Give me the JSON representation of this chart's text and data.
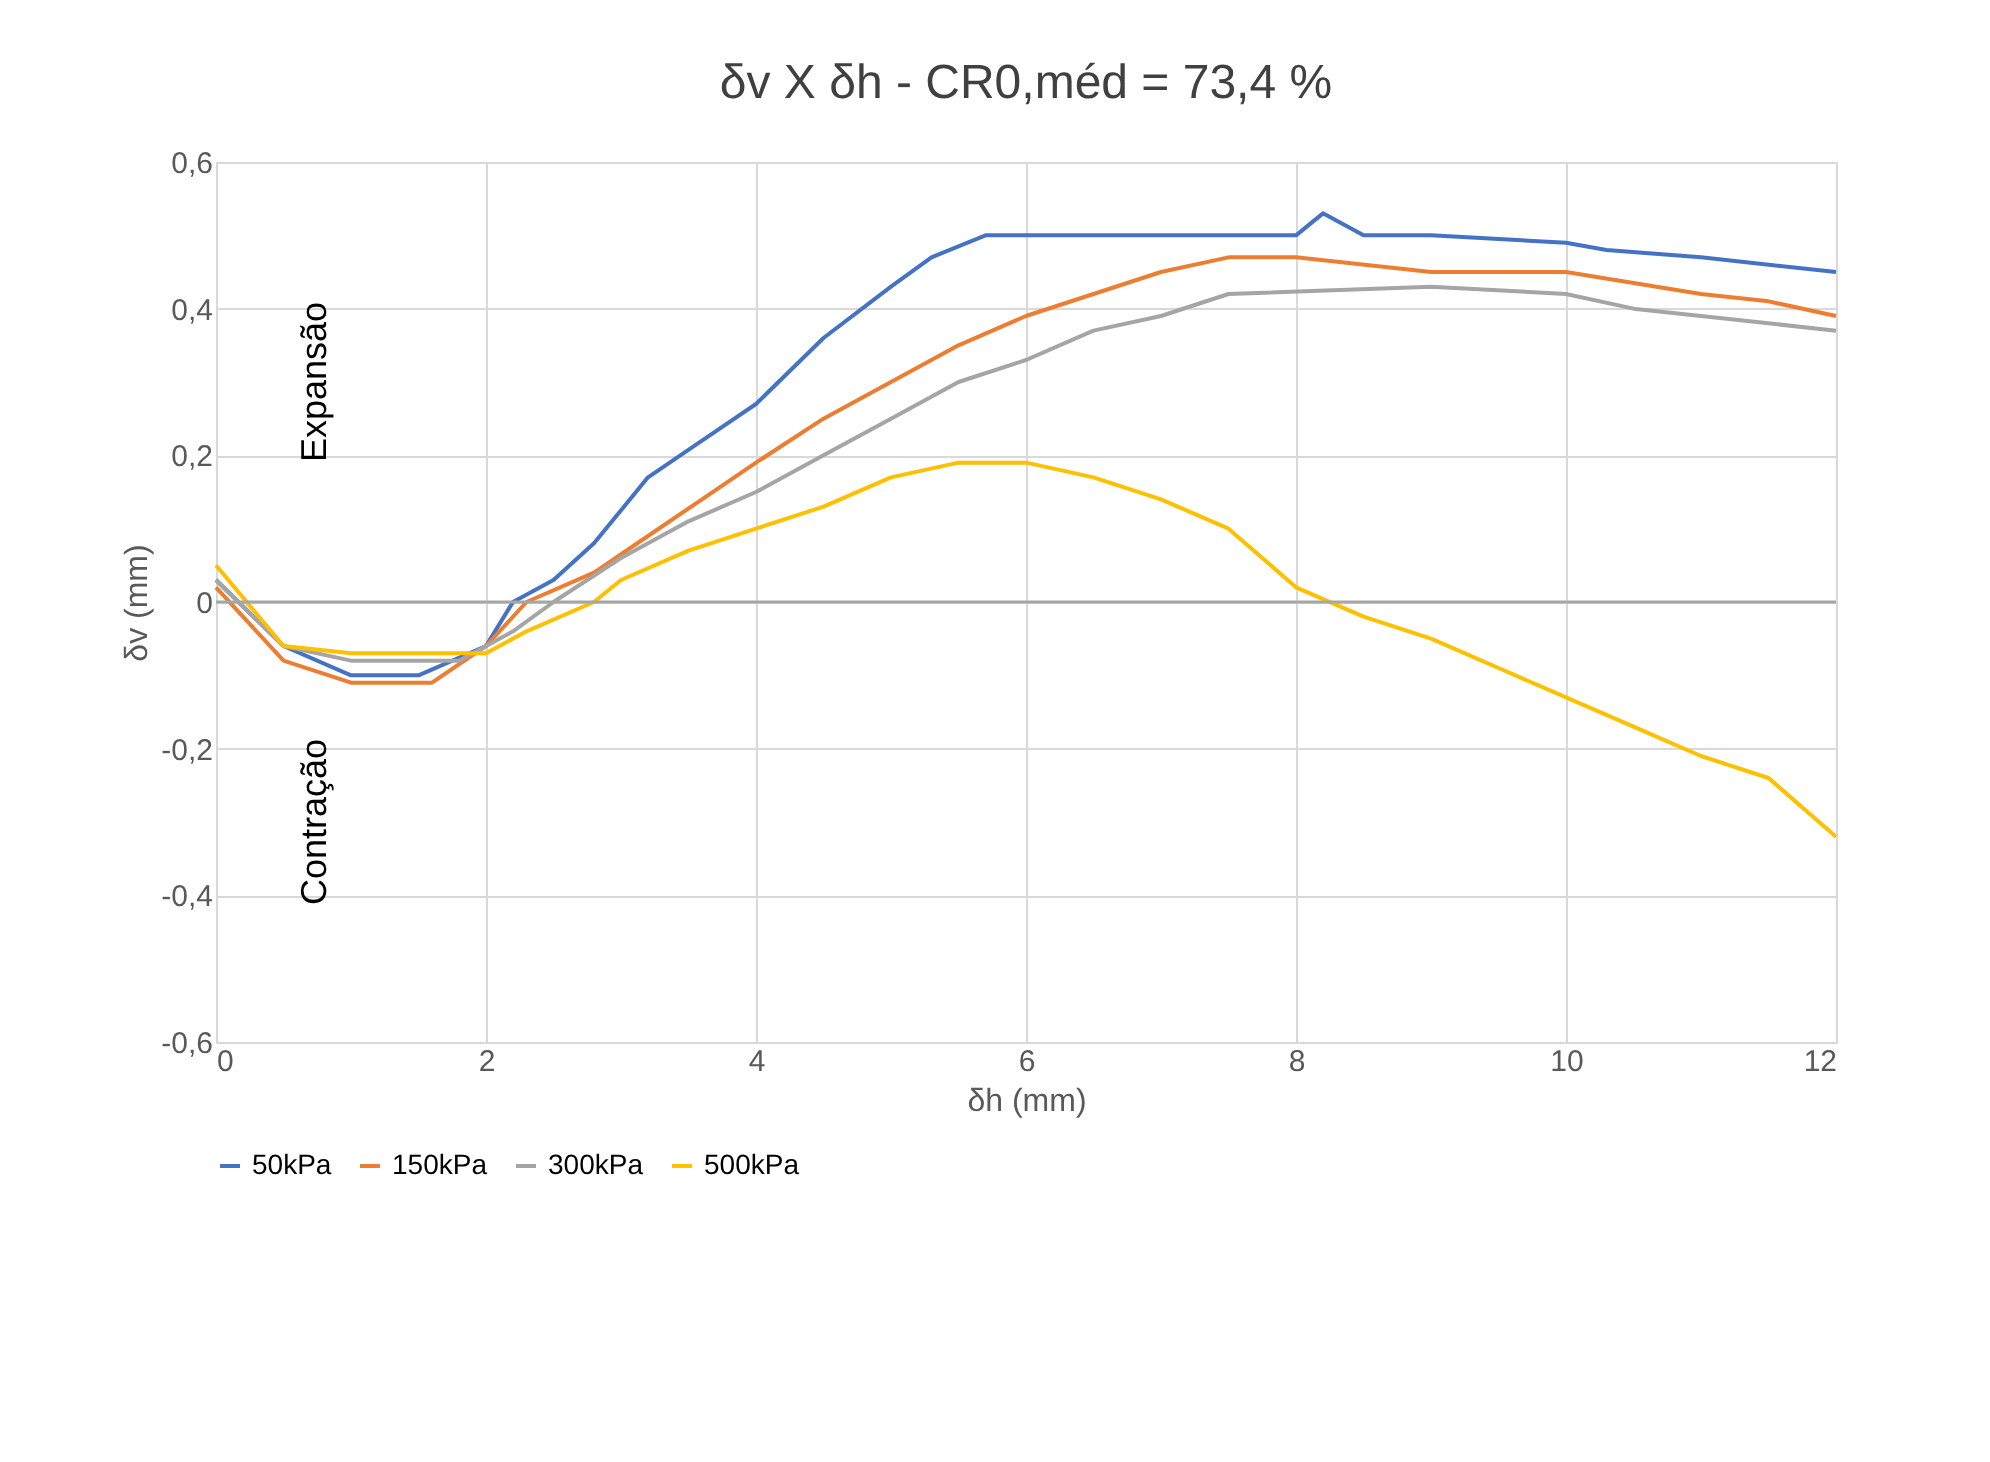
{
  "chart_data": {
    "type": "line",
    "title": "δv X δh - CR0,méd = 73,4 %",
    "xlabel": "δh (mm)",
    "ylabel": "δv (mm)",
    "xlim": [
      0,
      12
    ],
    "xticks": [
      0,
      2,
      4,
      6,
      8,
      10,
      12
    ],
    "ylim": [
      -0.6,
      0.6
    ],
    "yticks": [
      {
        "value": -0.6,
        "label": "-0,6"
      },
      {
        "value": -0.4,
        "label": "-0,4"
      },
      {
        "value": -0.2,
        "label": "-0,2"
      },
      0,
      {
        "value": 0.2,
        "label": "0,2"
      },
      {
        "value": 0.4,
        "label": "0,4"
      },
      {
        "value": 0.6,
        "label": "0,6"
      }
    ],
    "grid": true,
    "legend": "bottom",
    "marker": "none",
    "line_style": "solid",
    "annotations": [
      "Expansão",
      "Contração"
    ],
    "ref_lines": [
      {
        "axis": "y",
        "value": 0,
        "color": "#a6a6a6"
      }
    ],
    "series": [
      {
        "name": "50kPa",
        "color": "#4472c4",
        "x": [
          0,
          0.5,
          1,
          1.5,
          2,
          2.2,
          2.5,
          2.8,
          3.2,
          3.6,
          4,
          4.5,
          5,
          5.3,
          5.7,
          6.5,
          7.5,
          8,
          8.2,
          8.5,
          9,
          10,
          10.3,
          11,
          12
        ],
        "values": [
          0.03,
          -0.06,
          -0.1,
          -0.1,
          -0.06,
          0,
          0.03,
          0.08,
          0.17,
          0.22,
          0.27,
          0.36,
          0.43,
          0.47,
          0.5,
          0.5,
          0.5,
          0.5,
          0.53,
          0.5,
          0.5,
          0.49,
          0.48,
          0.47,
          0.45
        ]
      },
      {
        "name": "150kPa",
        "color": "#ed7d31",
        "x": [
          0,
          0.5,
          1,
          1.6,
          2,
          2.3,
          2.8,
          3.2,
          3.6,
          4,
          4.5,
          5,
          5.5,
          6,
          6.5,
          7,
          7.5,
          8,
          9,
          10,
          11,
          11.5,
          12
        ],
        "values": [
          0.02,
          -0.08,
          -0.11,
          -0.11,
          -0.06,
          0,
          0.04,
          0.09,
          0.14,
          0.19,
          0.25,
          0.3,
          0.35,
          0.39,
          0.42,
          0.45,
          0.47,
          0.47,
          0.45,
          0.45,
          0.42,
          0.41,
          0.39
        ]
      },
      {
        "name": "300kPa",
        "color": "#a5a5a5",
        "x": [
          0,
          0.5,
          1,
          1.8,
          2.2,
          2.5,
          3,
          3.5,
          4,
          4.5,
          5,
          5.5,
          6,
          6.5,
          7,
          7.5,
          9,
          10,
          10.5,
          11,
          12
        ],
        "values": [
          0.03,
          -0.06,
          -0.08,
          -0.08,
          -0.04,
          0,
          0.06,
          0.11,
          0.15,
          0.2,
          0.25,
          0.3,
          0.33,
          0.37,
          0.39,
          0.42,
          0.43,
          0.42,
          0.4,
          0.39,
          0.37
        ]
      },
      {
        "name": "500kPa",
        "color": "#ffc000",
        "x": [
          0,
          0.5,
          1,
          2,
          2.3,
          2.8,
          3,
          3.5,
          4,
          4.5,
          5,
          5.5,
          6,
          6.5,
          7,
          7.5,
          8,
          8.5,
          9,
          9.5,
          10,
          10.5,
          11,
          11.5,
          12
        ],
        "values": [
          0.05,
          -0.06,
          -0.07,
          -0.07,
          -0.04,
          0,
          0.03,
          0.07,
          0.1,
          0.13,
          0.17,
          0.19,
          0.19,
          0.17,
          0.14,
          0.1,
          0.02,
          -0.02,
          -0.05,
          -0.09,
          -0.13,
          -0.17,
          -0.21,
          -0.24,
          -0.32
        ]
      }
    ]
  }
}
